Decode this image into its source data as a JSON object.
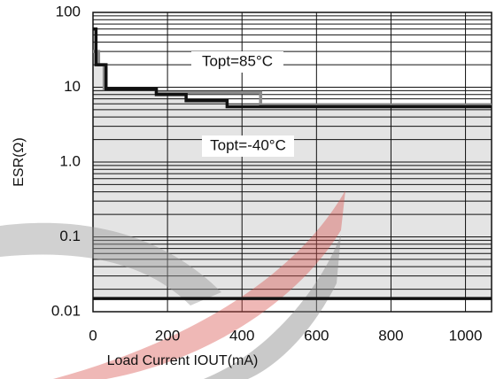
{
  "chart_data": {
    "type": "line",
    "xlabel": "Load Current IOUT(mA)",
    "ylabel": "ESR(Ω)",
    "xlim": [
      0,
      1070
    ],
    "xticks": [
      0,
      200,
      400,
      600,
      800,
      1000
    ],
    "ylim": [
      0.01,
      100
    ],
    "yticks": [
      0.01,
      0.1,
      {
        "value": 1,
        "label": "1.0"
      },
      10,
      100
    ],
    "log_y": true,
    "grid": true,
    "step": "post",
    "series": [
      {
        "name": "Topt=85°C",
        "color": "#8c8c8c",
        "x": [
          0,
          15,
          30,
          170,
          450,
          1070
        ],
        "values": [
          30,
          20,
          9.5,
          8.5,
          5.8,
          5.8
        ]
      },
      {
        "name": "Topt=-40°C",
        "color": "#111111",
        "x": [
          0,
          8,
          35,
          170,
          250,
          360,
          1070
        ],
        "values": [
          60,
          20,
          9.5,
          8,
          6.6,
          5.5,
          5.5
        ]
      },
      {
        "color": "#111111",
        "x": [
          0,
          1070
        ],
        "values": [
          0.015,
          0.015
        ]
      }
    ]
  }
}
